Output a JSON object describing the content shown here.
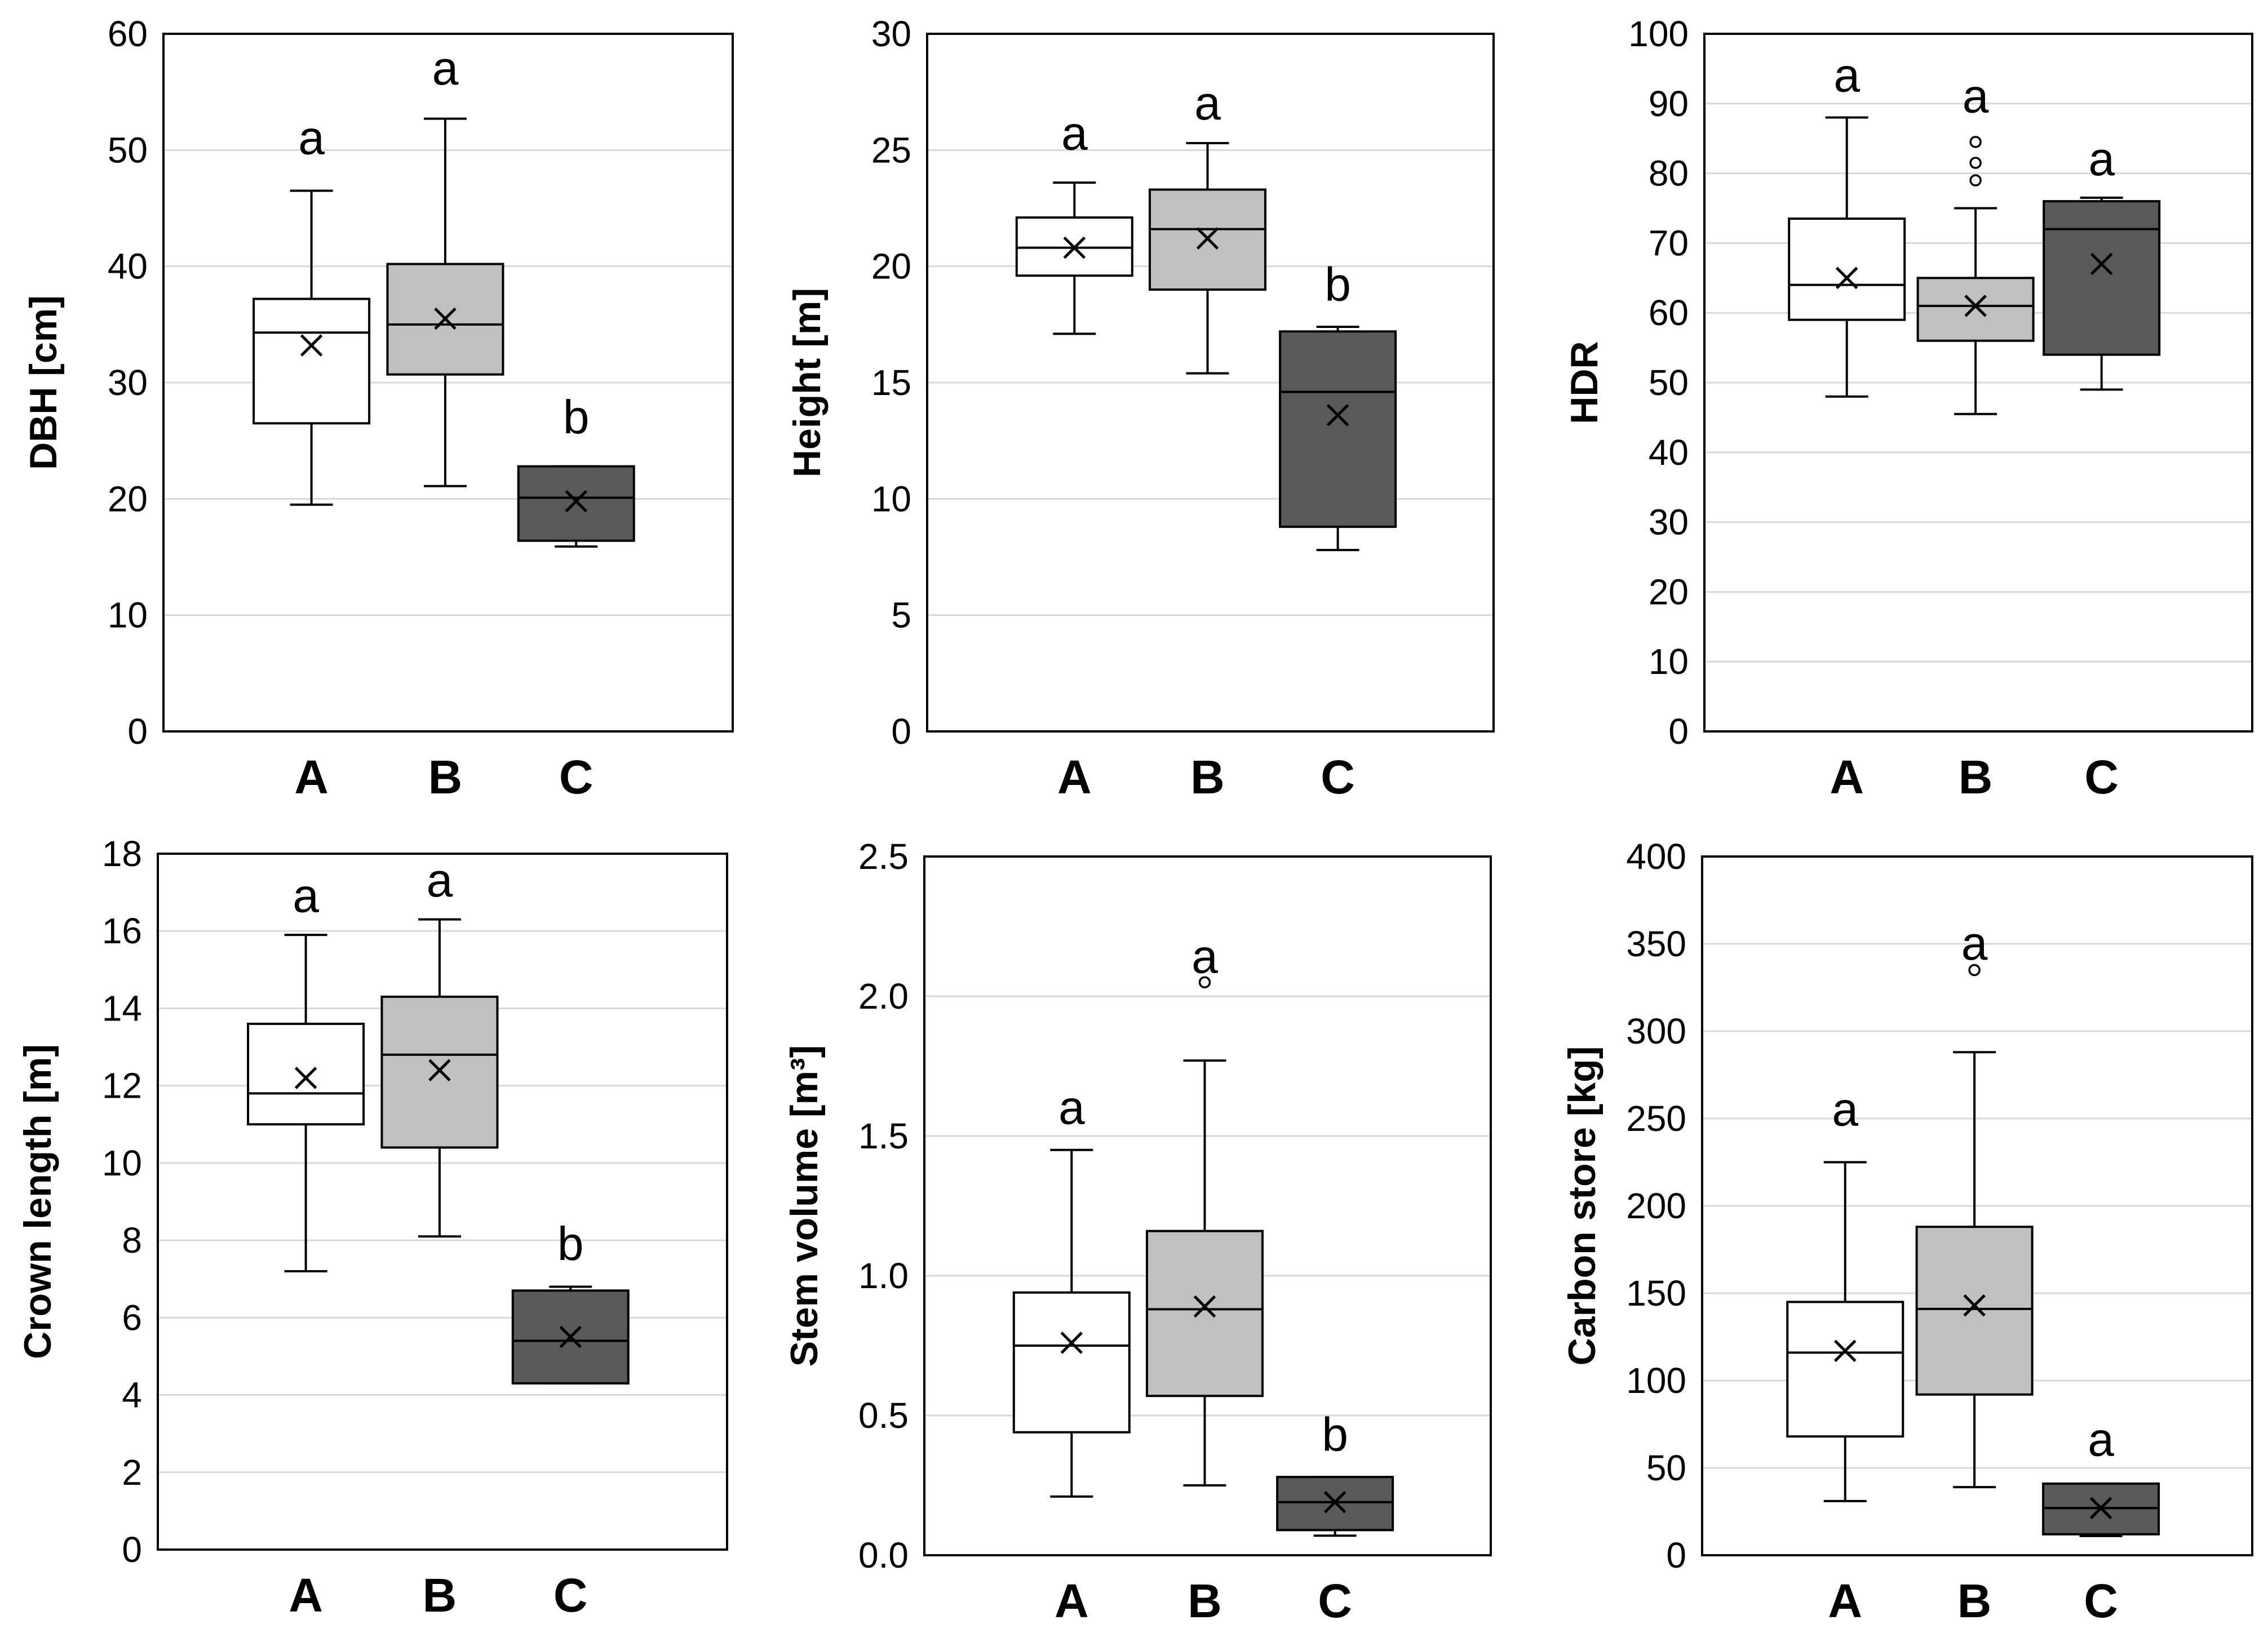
{
  "colors": {
    "A": "#ffffff",
    "B": "#c0c0c0",
    "C": "#595959",
    "grid": "#d9d9d9",
    "axis": "#000000"
  },
  "chart_data": [
    {
      "type": "box",
      "title": "",
      "ylabel": "DBH [cm]",
      "ylim": [
        0,
        60
      ],
      "ticks": [
        0,
        10,
        20,
        30,
        40,
        50,
        60
      ],
      "tick_labels": [
        "0",
        "10",
        "20",
        "30",
        "40",
        "50",
        "60"
      ],
      "categories": [
        "A",
        "B",
        "C"
      ],
      "grid": true,
      "series": [
        {
          "name": "A",
          "whisker_low": 19.5,
          "q1": 26.5,
          "median": 34.3,
          "q3": 37.2,
          "whisker_high": 46.5,
          "mean": 33.2,
          "outliers": [],
          "letter": "a",
          "letter_value": 51
        },
        {
          "name": "B",
          "whisker_low": 21.1,
          "q1": 30.7,
          "median": 35.0,
          "q3": 40.2,
          "whisker_high": 52.7,
          "mean": 35.5,
          "outliers": [],
          "letter": "a",
          "letter_value": 57
        },
        {
          "name": "C",
          "whisker_low": 15.9,
          "q1": 16.4,
          "median": 20.1,
          "q3": 22.8,
          "whisker_high": 22.8,
          "mean": 19.8,
          "outliers": [],
          "letter": "b",
          "letter_value": 27
        }
      ]
    },
    {
      "type": "box",
      "title": "",
      "ylabel": "Height [m]",
      "ylim": [
        0,
        30
      ],
      "ticks": [
        0,
        5,
        10,
        15,
        20,
        25,
        30
      ],
      "tick_labels": [
        "0",
        "5",
        "10",
        "15",
        "20",
        "25",
        "30"
      ],
      "categories": [
        "A",
        "B",
        "C"
      ],
      "grid": true,
      "series": [
        {
          "name": "A",
          "whisker_low": 17.1,
          "q1": 19.6,
          "median": 20.8,
          "q3": 22.1,
          "whisker_high": 23.6,
          "mean": 20.8,
          "outliers": [],
          "letter": "a",
          "letter_value": 25.7
        },
        {
          "name": "B",
          "whisker_low": 15.4,
          "q1": 19.0,
          "median": 21.6,
          "q3": 23.3,
          "whisker_high": 25.3,
          "mean": 21.2,
          "outliers": [],
          "letter": "a",
          "letter_value": 27.0
        },
        {
          "name": "C",
          "whisker_low": 7.8,
          "q1": 8.8,
          "median": 14.6,
          "q3": 17.2,
          "whisker_high": 17.4,
          "mean": 13.6,
          "outliers": [],
          "letter": "b",
          "letter_value": 19.2
        }
      ]
    },
    {
      "type": "box",
      "title": "",
      "ylabel": "HDR",
      "ylim": [
        0,
        100
      ],
      "ticks": [
        0,
        10,
        20,
        30,
        40,
        50,
        60,
        70,
        80,
        90,
        100
      ],
      "tick_labels": [
        "0",
        "10",
        "20",
        "30",
        "40",
        "50",
        "60",
        "70",
        "80",
        "90",
        "100"
      ],
      "categories": [
        "A",
        "B",
        "C"
      ],
      "grid": true,
      "series": [
        {
          "name": "A",
          "whisker_low": 48,
          "q1": 59,
          "median": 64,
          "q3": 73.5,
          "whisker_high": 88,
          "mean": 65,
          "outliers": [],
          "letter": "a",
          "letter_value": 94
        },
        {
          "name": "B",
          "whisker_low": 45.5,
          "q1": 56,
          "median": 61,
          "q3": 65,
          "whisker_high": 75,
          "mean": 61,
          "outliers": [
            79,
            81.5,
            84.5
          ],
          "letter": "a",
          "letter_value": 91
        },
        {
          "name": "C",
          "whisker_low": 49,
          "q1": 54,
          "median": 72,
          "q3": 76,
          "whisker_high": 76.5,
          "mean": 67,
          "outliers": [],
          "letter": "a",
          "letter_value": 82
        }
      ]
    },
    {
      "type": "box",
      "title": "",
      "ylabel": "Crown length [m]",
      "ylim": [
        0,
        18
      ],
      "ticks": [
        0,
        2,
        4,
        6,
        8,
        10,
        12,
        14,
        16,
        18
      ],
      "tick_labels": [
        "0",
        "2",
        "4",
        "6",
        "8",
        "10",
        "12",
        "14",
        "16",
        "18"
      ],
      "categories": [
        "A",
        "B",
        "C"
      ],
      "grid": true,
      "series": [
        {
          "name": "A",
          "whisker_low": 7.2,
          "q1": 11.0,
          "median": 11.8,
          "q3": 13.6,
          "whisker_high": 15.9,
          "mean": 12.2,
          "outliers": [],
          "letter": "a",
          "letter_value": 16.9
        },
        {
          "name": "B",
          "whisker_low": 8.1,
          "q1": 10.4,
          "median": 12.8,
          "q3": 14.3,
          "whisker_high": 16.3,
          "mean": 12.4,
          "outliers": [],
          "letter": "a",
          "letter_value": 17.3
        },
        {
          "name": "C",
          "whisker_low": 4.3,
          "q1": 4.3,
          "median": 5.4,
          "q3": 6.7,
          "whisker_high": 6.8,
          "mean": 5.5,
          "outliers": [],
          "letter": "b",
          "letter_value": 7.9
        }
      ]
    },
    {
      "type": "box",
      "title": "",
      "ylabel": "Stem volume [m³]",
      "ylim": [
        0,
        2.5
      ],
      "ticks": [
        0,
        0.5,
        1.0,
        1.5,
        2.0,
        2.5
      ],
      "tick_labels": [
        "0.0",
        "0.5",
        "1.0",
        "1.5",
        "2.0",
        "2.5"
      ],
      "categories": [
        "A",
        "B",
        "C"
      ],
      "grid": true,
      "series": [
        {
          "name": "A",
          "whisker_low": 0.21,
          "q1": 0.44,
          "median": 0.75,
          "q3": 0.94,
          "whisker_high": 1.45,
          "mean": 0.76,
          "outliers": [],
          "letter": "a",
          "letter_value": 1.6
        },
        {
          "name": "B",
          "whisker_low": 0.25,
          "q1": 0.57,
          "median": 0.88,
          "q3": 1.16,
          "whisker_high": 1.77,
          "mean": 0.89,
          "outliers": [
            2.05
          ],
          "letter": "a",
          "letter_value": 2.14
        },
        {
          "name": "C",
          "whisker_low": 0.07,
          "q1": 0.09,
          "median": 0.19,
          "q3": 0.28,
          "whisker_high": 0.28,
          "mean": 0.19,
          "outliers": [],
          "letter": "b",
          "letter_value": 0.43
        }
      ]
    },
    {
      "type": "box",
      "title": "",
      "ylabel": "Carbon store [kg]",
      "ylim": [
        0,
        400
      ],
      "ticks": [
        0,
        50,
        100,
        150,
        200,
        250,
        300,
        350,
        400
      ],
      "tick_labels": [
        "0",
        "50",
        "100",
        "150",
        "200",
        "250",
        "300",
        "350",
        "400"
      ],
      "categories": [
        "A",
        "B",
        "C"
      ],
      "grid": true,
      "series": [
        {
          "name": "A",
          "whisker_low": 31,
          "q1": 68,
          "median": 116,
          "q3": 145,
          "whisker_high": 225,
          "mean": 117,
          "outliers": [],
          "letter": "a",
          "letter_value": 255
        },
        {
          "name": "B",
          "whisker_low": 39,
          "q1": 92,
          "median": 141,
          "q3": 188,
          "whisker_high": 288,
          "mean": 143,
          "outliers": [
            335
          ],
          "letter": "a",
          "letter_value": 350
        },
        {
          "name": "C",
          "whisker_low": 11,
          "q1": 12,
          "median": 27,
          "q3": 41,
          "whisker_high": 41,
          "mean": 27,
          "outliers": [],
          "letter": "a",
          "letter_value": 66
        }
      ]
    }
  ]
}
